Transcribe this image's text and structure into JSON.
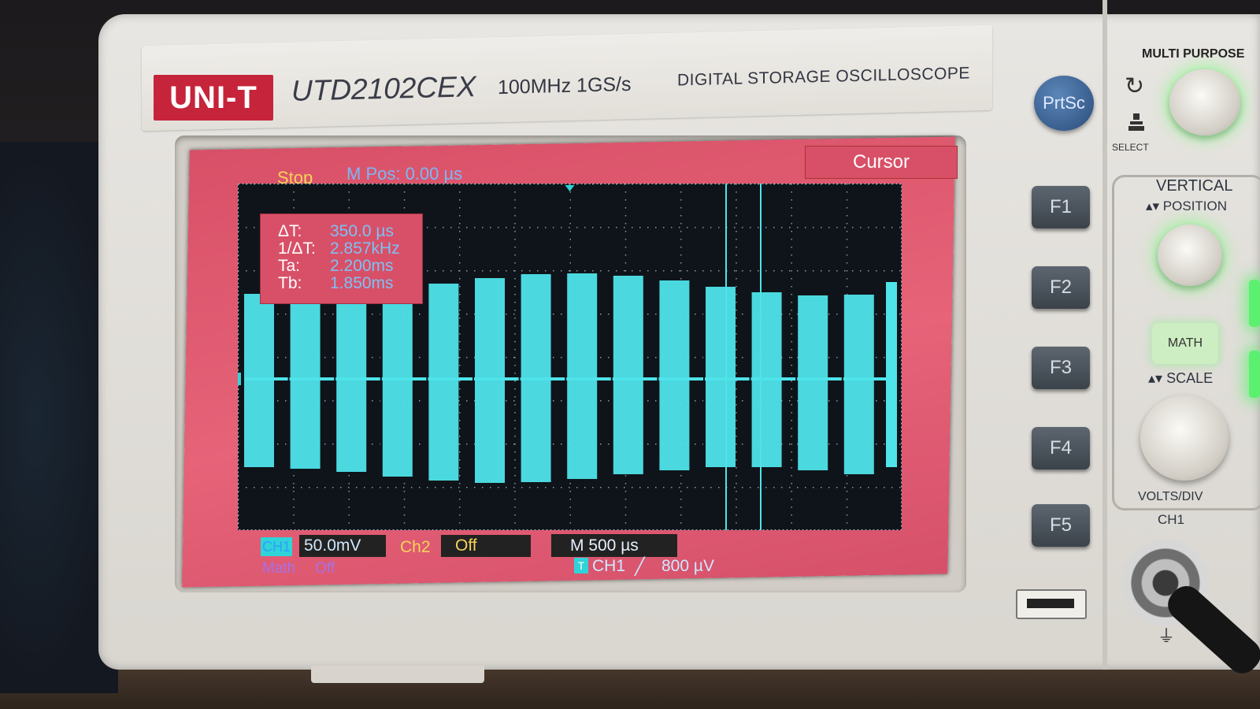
{
  "header": {
    "logo": "UNI-T",
    "model": "UTD2102CEX",
    "spec": "100MHz  1GS/s",
    "description": "DIGITAL STORAGE OSCILLOSCOPE"
  },
  "screen": {
    "status": "Stop",
    "m_pos": "M Pos: 0.00 µs",
    "menu_tab": "Cursor",
    "cursor_readout": [
      {
        "label": "ΔT:",
        "value": "350.0 µs"
      },
      {
        "label": "1/ΔT:",
        "value": "2.857kHz"
      },
      {
        "label": "Ta:",
        "value": "2.200ms"
      },
      {
        "label": "Tb:",
        "value": "1.850ms"
      }
    ],
    "ch1_badge": "CH1",
    "ch1_scale": "50.0mV",
    "ch2_label": "Ch2",
    "ch2_state": "Off",
    "timebase": "M 500 µs",
    "math_label": "Math",
    "math_state": "Off",
    "trigger_badge": "T",
    "trigger_source": "CH1",
    "trigger_slope": "╱",
    "trigger_level": "800 µV",
    "ground_marker": "1",
    "waveform_color": "#4fe3ea",
    "background_color": "#d85067"
  },
  "buttons": {
    "prtsc": "PrtSc",
    "f1": "F1",
    "f2": "F2",
    "f3": "F3",
    "f4": "F4",
    "f5": "F5"
  },
  "controls": {
    "multi_purpose": "MULTI PURPOSE",
    "select": "SELECT",
    "vertical": "VERTICAL",
    "position": "▴▾ POSITION",
    "math": "MATH",
    "scale": "▴▾ SCALE",
    "volts_div": "VOLTS/DIV",
    "ch1_input": "CH1"
  }
}
